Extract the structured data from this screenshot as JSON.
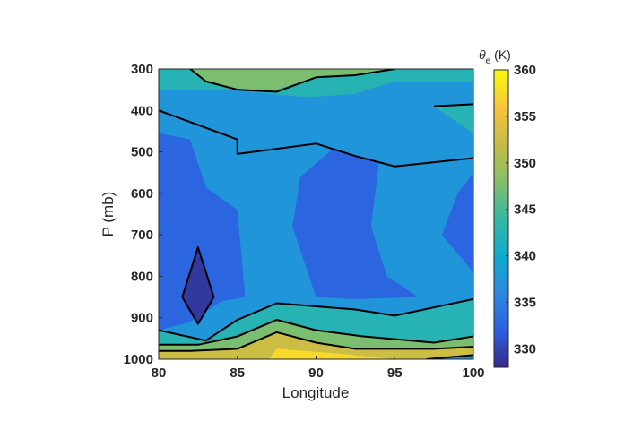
{
  "chart_data": {
    "type": "contourf",
    "xlabel": "Longitude",
    "ylabel": "P (mb)",
    "xlim": [
      80,
      100
    ],
    "ylim": [
      1000,
      300
    ],
    "y_reversed": true,
    "xticks": [
      "80",
      "85",
      "90",
      "95",
      "100"
    ],
    "yticks": [
      "300",
      "400",
      "500",
      "600",
      "700",
      "800",
      "900",
      "1000"
    ],
    "colorbar": {
      "label_symbol": "θ",
      "label_subscript": "e",
      "label_unit": "(K)",
      "range": [
        328,
        360
      ],
      "ticks": [
        "330",
        "335",
        "340",
        "345",
        "350",
        "355",
        "360"
      ],
      "colormap": "parula"
    },
    "contour_levels": [
      330,
      335,
      340,
      345,
      350,
      355
    ],
    "regions": [
      {
        "level": 335,
        "theta_e_range": [
          335,
          340
        ],
        "points": [
          [
            80,
            300
          ],
          [
            100,
            300
          ],
          [
            100,
            1000
          ],
          [
            80,
            1000
          ]
        ]
      },
      {
        "level": 340,
        "theta_e_range": [
          340,
          345
        ],
        "points": [
          [
            80,
            300
          ],
          [
            100,
            300
          ],
          [
            100,
            330
          ],
          [
            95,
            330
          ],
          [
            92.5,
            360
          ],
          [
            90,
            370
          ],
          [
            87,
            360
          ],
          [
            85,
            350
          ],
          [
            80,
            350
          ]
        ]
      },
      {
        "level": 345,
        "theta_e_range": [
          345,
          350
        ],
        "points": [
          [
            82,
            300
          ],
          [
            95,
            300
          ],
          [
            92.5,
            315
          ],
          [
            90,
            320
          ],
          [
            87,
            355
          ],
          [
            85,
            355
          ],
          [
            83,
            330
          ]
        ]
      },
      {
        "level": 340,
        "theta_e_range": [
          340,
          345
        ],
        "points": [
          [
            80,
            300
          ],
          [
            82,
            300
          ],
          [
            83,
            330
          ],
          [
            85,
            355
          ],
          [
            87.5,
            355
          ],
          [
            90,
            320
          ],
          [
            92.5,
            315
          ],
          [
            95,
            300
          ],
          [
            100,
            300
          ],
          [
            100,
            300
          ],
          [
            95,
            300
          ],
          [
            92.5,
            360
          ],
          [
            89.5,
            368
          ],
          [
            87,
            360
          ],
          [
            85,
            350
          ],
          [
            80,
            350
          ]
        ]
      },
      {
        "level": 335,
        "theta_e_range": [
          335,
          340
        ],
        "points": [
          [
            80,
            400
          ],
          [
            80,
            350
          ],
          [
            85,
            350
          ],
          [
            87,
            360
          ],
          [
            89.5,
            368
          ],
          [
            92.5,
            360
          ],
          [
            95,
            330
          ],
          [
            100,
            330
          ],
          [
            100,
            515
          ],
          [
            95,
            535
          ],
          [
            92.5,
            510
          ],
          [
            90,
            485
          ],
          [
            85,
            505
          ]
        ]
      },
      {
        "level": 340,
        "theta_e_range": [
          340,
          345
        ],
        "points": [
          [
            97.5,
            390
          ],
          [
            100,
            385
          ],
          [
            100,
            455
          ]
        ]
      },
      {
        "level": 330,
        "theta_e_range": [
          330,
          335
        ],
        "points": [
          [
            80,
            455
          ],
          [
            82,
            470
          ],
          [
            83,
            585
          ],
          [
            85,
            640
          ],
          [
            85.5,
            850
          ],
          [
            84,
            860
          ],
          [
            82,
            910
          ],
          [
            80,
            930
          ]
        ]
      },
      {
        "level": 330,
        "theta_e_range": [
          330,
          335
        ],
        "points": [
          [
            89,
            560
          ],
          [
            91,
            495
          ],
          [
            94,
            525
          ],
          [
            93.5,
            680
          ],
          [
            94.5,
            800
          ],
          [
            96.5,
            850
          ],
          [
            92.5,
            855
          ],
          [
            90,
            850
          ],
          [
            88.5,
            680
          ]
        ]
      },
      {
        "level": 330,
        "theta_e_range": [
          330,
          335
        ],
        "points": [
          [
            100,
            550
          ],
          [
            99,
            600
          ],
          [
            98,
            700
          ],
          [
            100,
            790
          ]
        ]
      },
      {
        "level": 325,
        "theta_e_range": [
          328,
          330
        ],
        "points": [
          [
            81.5,
            850
          ],
          [
            82.5,
            730
          ],
          [
            83.5,
            850
          ],
          [
            82.5,
            915
          ]
        ]
      },
      {
        "level": 340,
        "theta_e_range": [
          340,
          345
        ],
        "points": [
          [
            80,
            930
          ],
          [
            83,
            955
          ],
          [
            85,
            905
          ],
          [
            87.5,
            865
          ],
          [
            92.5,
            880
          ],
          [
            95,
            895
          ],
          [
            100,
            855
          ],
          [
            100,
            945
          ],
          [
            97.5,
            960
          ],
          [
            93,
            945
          ],
          [
            90,
            930
          ],
          [
            87.5,
            905
          ],
          [
            85,
            945
          ],
          [
            82.5,
            965
          ],
          [
            80,
            965
          ]
        ]
      },
      {
        "level": 345,
        "theta_e_range": [
          345,
          350
        ],
        "points": [
          [
            80,
            965
          ],
          [
            82.5,
            965
          ],
          [
            85,
            945
          ],
          [
            87.5,
            905
          ],
          [
            90,
            930
          ],
          [
            93,
            945
          ],
          [
            97.5,
            960
          ],
          [
            100,
            945
          ],
          [
            100,
            970
          ],
          [
            97.5,
            975
          ],
          [
            92.5,
            975
          ],
          [
            90,
            960
          ],
          [
            87.5,
            935
          ],
          [
            85,
            975
          ],
          [
            82,
            980
          ],
          [
            80,
            980
          ]
        ]
      },
      {
        "level": 350,
        "theta_e_range": [
          350,
          355
        ],
        "points": [
          [
            80,
            980
          ],
          [
            82,
            980
          ],
          [
            85,
            975
          ],
          [
            87.5,
            935
          ],
          [
            90,
            960
          ],
          [
            92.5,
            975
          ],
          [
            97.5,
            975
          ],
          [
            100,
            970
          ],
          [
            100,
            990
          ],
          [
            97,
            1000
          ],
          [
            80,
            1000
          ]
        ]
      },
      {
        "level": 355,
        "theta_e_range": [
          355,
          360
        ],
        "points": [
          [
            87,
            1000
          ],
          [
            87.5,
            975
          ],
          [
            91,
            985
          ],
          [
            95,
            1000
          ]
        ]
      }
    ],
    "contour_lines": [
      [
        [
          82,
          300
        ],
        [
          83,
          330
        ],
        [
          85,
          350
        ],
        [
          87.5,
          355
        ],
        [
          90,
          320
        ],
        [
          92.5,
          315
        ],
        [
          95,
          300
        ]
      ],
      [
        [
          80,
          400
        ],
        [
          85,
          470
        ],
        [
          85,
          505
        ],
        [
          90,
          480
        ],
        [
          92.5,
          510
        ],
        [
          95,
          535
        ],
        [
          100,
          515
        ]
      ],
      [
        [
          97.5,
          390
        ],
        [
          100,
          385
        ],
        [
          100,
          455
        ]
      ],
      [
        [
          81.5,
          850
        ],
        [
          82.5,
          730
        ],
        [
          83.5,
          850
        ],
        [
          82.5,
          915
        ],
        [
          81.5,
          850
        ]
      ],
      [
        [
          80,
          930
        ],
        [
          83,
          955
        ],
        [
          85,
          905
        ],
        [
          87.5,
          865
        ],
        [
          92.5,
          880
        ],
        [
          95,
          895
        ],
        [
          100,
          855
        ]
      ],
      [
        [
          80,
          965
        ],
        [
          82.5,
          965
        ],
        [
          85,
          945
        ],
        [
          87.5,
          905
        ],
        [
          90,
          930
        ],
        [
          93,
          945
        ],
        [
          97.5,
          960
        ],
        [
          100,
          945
        ]
      ],
      [
        [
          80,
          980
        ],
        [
          82,
          980
        ],
        [
          85,
          975
        ],
        [
          87.5,
          935
        ],
        [
          90,
          960
        ],
        [
          92.5,
          975
        ],
        [
          97.5,
          975
        ],
        [
          100,
          970
        ]
      ],
      [
        [
          97,
          1000
        ],
        [
          100,
          990
        ]
      ]
    ]
  }
}
